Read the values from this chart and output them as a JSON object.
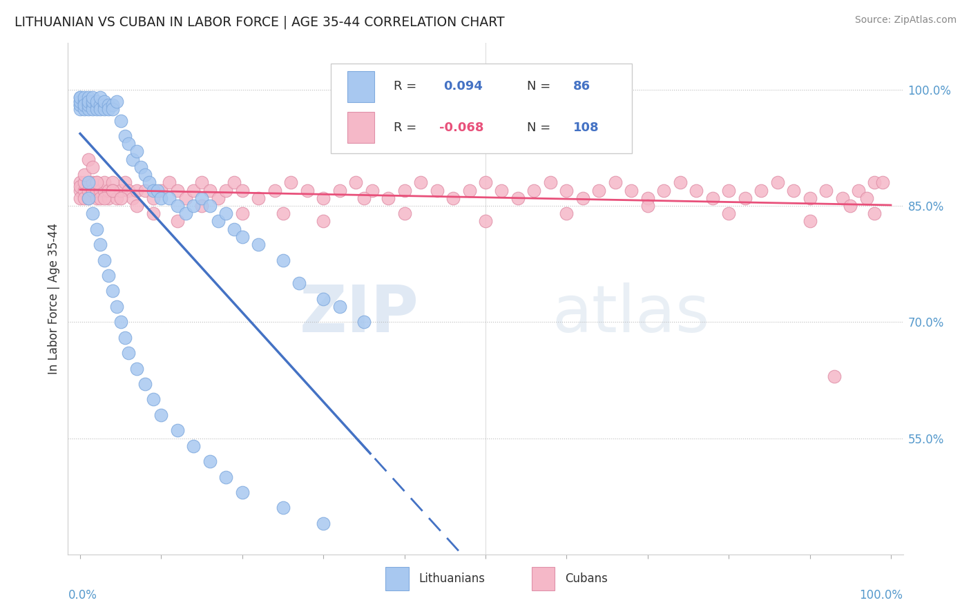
{
  "title": "LITHUANIAN VS CUBAN IN LABOR FORCE | AGE 35-44 CORRELATION CHART",
  "source": "Source: ZipAtlas.com",
  "ylabel": "In Labor Force | Age 35-44",
  "ytick_labels": [
    "100.0%",
    "85.0%",
    "70.0%",
    "55.0%"
  ],
  "ytick_values": [
    1.0,
    0.85,
    0.7,
    0.55
  ],
  "color_lith": "#a8c8f0",
  "color_lith_edge": "#80aade",
  "color_cuban": "#f5b8c8",
  "color_cuban_edge": "#e090a8",
  "color_lith_line": "#4472c4",
  "color_cuban_line": "#e8507a",
  "r_lith": 0.094,
  "n_lith": 86,
  "r_cuban": -0.068,
  "n_cuban": 108,
  "lith_x": [
    0.0,
    0.0,
    0.0,
    0.0,
    0.0,
    0.0,
    0.0,
    0.005,
    0.005,
    0.005,
    0.005,
    0.005,
    0.01,
    0.01,
    0.01,
    0.01,
    0.01,
    0.01,
    0.015,
    0.015,
    0.015,
    0.015,
    0.02,
    0.02,
    0.02,
    0.025,
    0.025,
    0.025,
    0.03,
    0.03,
    0.03,
    0.035,
    0.035,
    0.04,
    0.04,
    0.045,
    0.05,
    0.055,
    0.06,
    0.065,
    0.07,
    0.075,
    0.08,
    0.085,
    0.09,
    0.095,
    0.1,
    0.11,
    0.12,
    0.13,
    0.14,
    0.15,
    0.16,
    0.17,
    0.18,
    0.19,
    0.2,
    0.22,
    0.25,
    0.27,
    0.3,
    0.32,
    0.35,
    0.01,
    0.01,
    0.015,
    0.02,
    0.025,
    0.03,
    0.035,
    0.04,
    0.045,
    0.05,
    0.055,
    0.06,
    0.07,
    0.08,
    0.09,
    0.1,
    0.12,
    0.14,
    0.16,
    0.18,
    0.2,
    0.25,
    0.3
  ],
  "lith_y": [
    0.98,
    0.985,
    0.99,
    0.975,
    0.98,
    0.985,
    0.99,
    0.98,
    0.985,
    0.99,
    0.975,
    0.98,
    0.98,
    0.985,
    0.975,
    0.98,
    0.99,
    0.985,
    0.98,
    0.975,
    0.985,
    0.99,
    0.98,
    0.975,
    0.985,
    0.98,
    0.99,
    0.975,
    0.98,
    0.975,
    0.985,
    0.98,
    0.975,
    0.98,
    0.975,
    0.985,
    0.96,
    0.94,
    0.93,
    0.91,
    0.92,
    0.9,
    0.89,
    0.88,
    0.87,
    0.87,
    0.86,
    0.86,
    0.85,
    0.84,
    0.85,
    0.86,
    0.85,
    0.83,
    0.84,
    0.82,
    0.81,
    0.8,
    0.78,
    0.75,
    0.73,
    0.72,
    0.7,
    0.88,
    0.86,
    0.84,
    0.82,
    0.8,
    0.78,
    0.76,
    0.74,
    0.72,
    0.7,
    0.68,
    0.66,
    0.64,
    0.62,
    0.6,
    0.58,
    0.56,
    0.54,
    0.52,
    0.5,
    0.48,
    0.46,
    0.44
  ],
  "cuban_x": [
    0.0,
    0.0,
    0.0,
    0.0,
    0.005,
    0.005,
    0.005,
    0.01,
    0.01,
    0.01,
    0.015,
    0.015,
    0.015,
    0.02,
    0.02,
    0.02,
    0.025,
    0.025,
    0.03,
    0.03,
    0.035,
    0.035,
    0.04,
    0.04,
    0.045,
    0.05,
    0.055,
    0.06,
    0.065,
    0.07,
    0.08,
    0.09,
    0.1,
    0.11,
    0.12,
    0.13,
    0.14,
    0.15,
    0.16,
    0.17,
    0.18,
    0.19,
    0.2,
    0.22,
    0.24,
    0.26,
    0.28,
    0.3,
    0.32,
    0.34,
    0.36,
    0.38,
    0.4,
    0.42,
    0.44,
    0.46,
    0.48,
    0.5,
    0.52,
    0.54,
    0.56,
    0.58,
    0.6,
    0.62,
    0.64,
    0.66,
    0.68,
    0.7,
    0.72,
    0.74,
    0.76,
    0.78,
    0.8,
    0.82,
    0.84,
    0.86,
    0.88,
    0.9,
    0.92,
    0.94,
    0.96,
    0.98,
    0.005,
    0.01,
    0.015,
    0.02,
    0.03,
    0.04,
    0.05,
    0.07,
    0.09,
    0.12,
    0.15,
    0.2,
    0.25,
    0.3,
    0.35,
    0.4,
    0.5,
    0.6,
    0.7,
    0.8,
    0.9,
    0.95,
    0.98,
    0.99,
    0.97,
    0.93
  ],
  "cuban_y": [
    0.88,
    0.87,
    0.86,
    0.875,
    0.87,
    0.86,
    0.88,
    0.87,
    0.88,
    0.86,
    0.87,
    0.88,
    0.87,
    0.86,
    0.87,
    0.88,
    0.87,
    0.86,
    0.87,
    0.88,
    0.86,
    0.87,
    0.88,
    0.87,
    0.86,
    0.87,
    0.88,
    0.87,
    0.86,
    0.87,
    0.87,
    0.86,
    0.87,
    0.88,
    0.87,
    0.86,
    0.87,
    0.88,
    0.87,
    0.86,
    0.87,
    0.88,
    0.87,
    0.86,
    0.87,
    0.88,
    0.87,
    0.86,
    0.87,
    0.88,
    0.87,
    0.86,
    0.87,
    0.88,
    0.87,
    0.86,
    0.87,
    0.88,
    0.87,
    0.86,
    0.87,
    0.88,
    0.87,
    0.86,
    0.87,
    0.88,
    0.87,
    0.86,
    0.87,
    0.88,
    0.87,
    0.86,
    0.87,
    0.86,
    0.87,
    0.88,
    0.87,
    0.86,
    0.87,
    0.86,
    0.87,
    0.88,
    0.89,
    0.91,
    0.9,
    0.88,
    0.86,
    0.87,
    0.86,
    0.85,
    0.84,
    0.83,
    0.85,
    0.84,
    0.84,
    0.83,
    0.86,
    0.84,
    0.83,
    0.84,
    0.85,
    0.84,
    0.83,
    0.85,
    0.84,
    0.88,
    0.86,
    0.63
  ]
}
